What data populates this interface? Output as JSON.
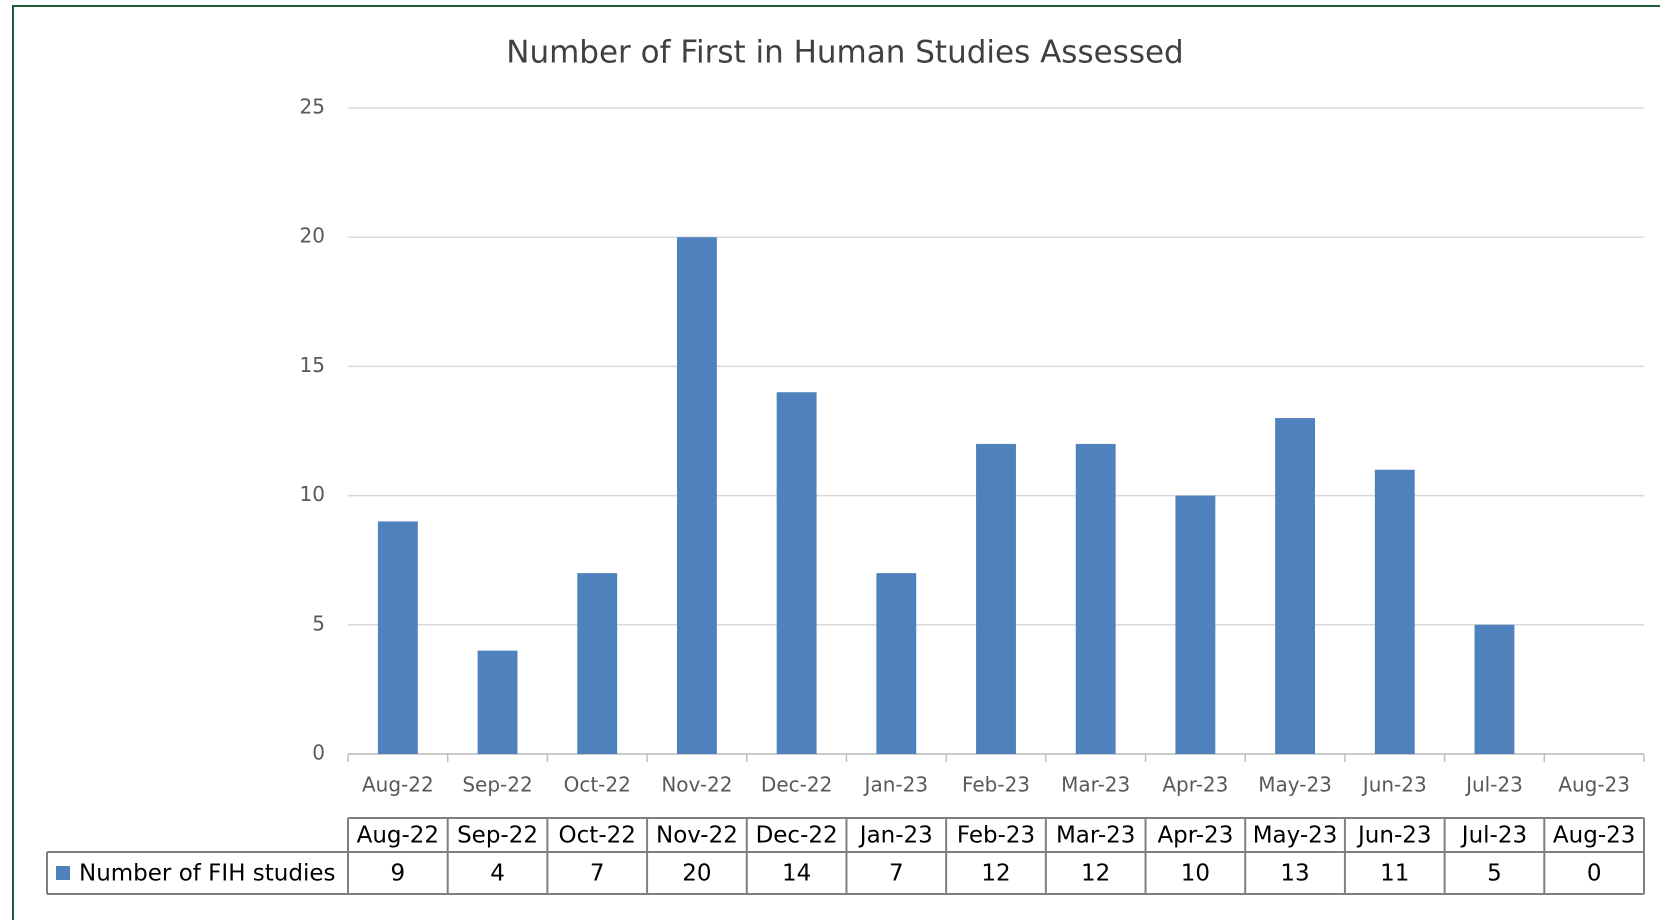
{
  "chart_data": {
    "type": "bar",
    "title": "Number of First in Human Studies Assessed",
    "categories": [
      "Aug-22",
      "Sep-22",
      "Oct-22",
      "Nov-22",
      "Dec-22",
      "Jan-23",
      "Feb-23",
      "Mar-23",
      "Apr-23",
      "May-23",
      "Jun-23",
      "Jul-23",
      "Aug-23"
    ],
    "series": [
      {
        "name": "Number of FIH studies",
        "color": "#4f81bd",
        "values": [
          9,
          4,
          7,
          20,
          14,
          7,
          12,
          12,
          10,
          13,
          11,
          5,
          0
        ]
      }
    ],
    "ylim": [
      0,
      25
    ],
    "yticks": [
      0,
      5,
      10,
      15,
      20,
      25
    ],
    "grid": true,
    "data_table": true
  }
}
